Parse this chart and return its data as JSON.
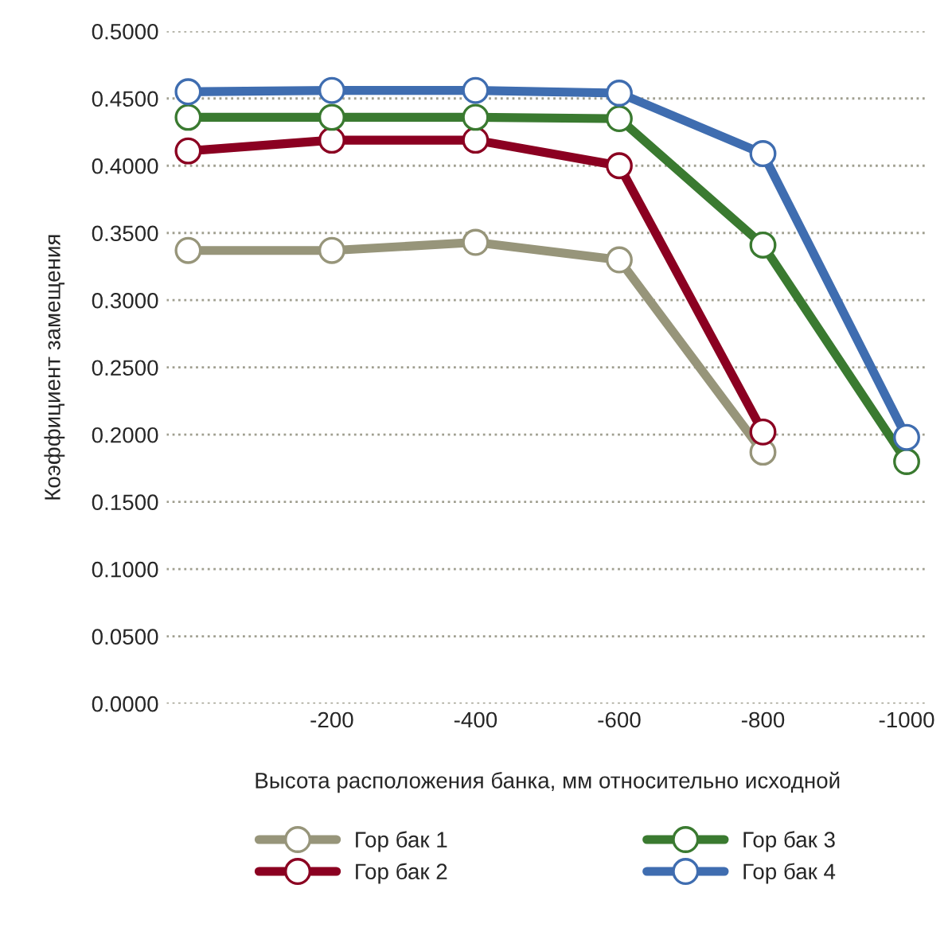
{
  "chart_data": {
    "type": "line",
    "xlabel": "Высота расположения банка, мм относительно исходной",
    "ylabel": "Коэффициент замещения",
    "categories": [
      null,
      "-200",
      "-400",
      "-600",
      "-800",
      "-1000"
    ],
    "series": [
      {
        "name": "Гор бак 1",
        "color": "#97957a",
        "values": [
          0.337,
          0.337,
          0.343,
          0.33,
          0.187,
          null
        ]
      },
      {
        "name": "Гор бак 2",
        "color": "#8b0021",
        "values": [
          0.411,
          0.419,
          0.419,
          0.4,
          0.202,
          null
        ]
      },
      {
        "name": "Гор бак 3",
        "color": "#3a7a30",
        "values": [
          0.436,
          0.436,
          0.436,
          0.435,
          0.341,
          0.18
        ]
      },
      {
        "name": "Гор бак 4",
        "color": "#3f6db0",
        "values": [
          0.455,
          0.456,
          0.456,
          0.454,
          0.409,
          0.198
        ]
      }
    ],
    "ylim": [
      0,
      0.5
    ],
    "yticks": [
      {
        "value": 0,
        "label": "0.0000"
      },
      {
        "value": 0.05,
        "label": "0.0500"
      },
      {
        "value": 0.1,
        "label": "0.1000"
      },
      {
        "value": 0.15,
        "label": "0.1500"
      },
      {
        "value": 0.2,
        "label": "0.2000"
      },
      {
        "value": 0.25,
        "label": "0.2500"
      },
      {
        "value": 0.3,
        "label": "0.3000"
      },
      {
        "value": 0.35,
        "label": "0.3500"
      },
      {
        "value": 0.4,
        "label": "0.4000"
      },
      {
        "value": 0.45,
        "label": "0.4500"
      },
      {
        "value": 0.5,
        "label": "0.5000"
      }
    ],
    "grid": "y",
    "legend": "bottom",
    "marker": "circle",
    "line_style": "solid"
  }
}
